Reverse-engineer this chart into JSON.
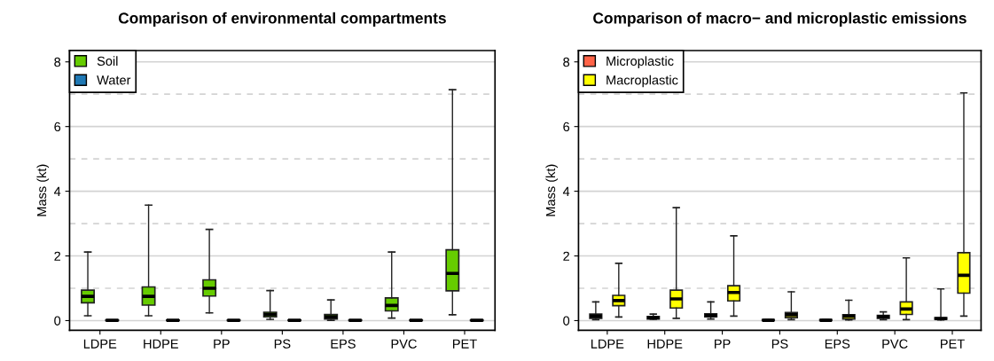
{
  "chart_data": [
    {
      "type": "box",
      "title": "Comparison of environmental compartments",
      "ylabel": "Mass (kt)",
      "categories": [
        "LDPE",
        "HDPE",
        "PP",
        "PS",
        "EPS",
        "PVC",
        "PET"
      ],
      "ylim": [
        -0.3,
        8.35
      ],
      "yticks": [
        0,
        2,
        4,
        6,
        8
      ],
      "grid": "y",
      "legend": "top left",
      "ref_lines": [
        {
          "axis": "y",
          "value": 1,
          "line_style": "dashed",
          "color": "#d3d3d3"
        },
        {
          "axis": "y",
          "value": 3,
          "line_style": "dashed",
          "color": "#d3d3d3"
        },
        {
          "axis": "y",
          "value": 5,
          "line_style": "dashed",
          "color": "#d3d3d3"
        },
        {
          "axis": "y",
          "value": 7,
          "line_style": "dashed",
          "color": "#d3d3d3"
        }
      ],
      "series": [
        {
          "name": "Soil",
          "color": "#66cc00",
          "boxes": [
            {
              "low": 0.15,
              "q1": 0.55,
              "median": 0.75,
              "q3": 0.94,
              "high": 2.12
            },
            {
              "low": 0.15,
              "q1": 0.48,
              "median": 0.75,
              "q3": 1.04,
              "high": 3.57
            },
            {
              "low": 0.24,
              "q1": 0.76,
              "median": 1.0,
              "q3": 1.26,
              "high": 2.82
            },
            {
              "low": 0.04,
              "q1": 0.12,
              "median": 0.19,
              "q3": 0.26,
              "high": 0.93
            },
            {
              "low": 0.01,
              "q1": 0.05,
              "median": 0.12,
              "q3": 0.19,
              "high": 0.64
            },
            {
              "low": 0.08,
              "q1": 0.3,
              "median": 0.47,
              "q3": 0.7,
              "high": 2.12
            },
            {
              "low": 0.18,
              "q1": 0.92,
              "median": 1.46,
              "q3": 2.19,
              "high": 7.14
            }
          ]
        },
        {
          "name": "Water",
          "color": "#1f78b4",
          "boxes": [
            {
              "low": 0,
              "q1": 0,
              "median": 0.01,
              "q3": 0.02,
              "high": 0.02
            },
            {
              "low": 0,
              "q1": 0,
              "median": 0.01,
              "q3": 0.02,
              "high": 0.02
            },
            {
              "low": 0,
              "q1": 0,
              "median": 0.01,
              "q3": 0.02,
              "high": 0.02
            },
            {
              "low": 0,
              "q1": 0,
              "median": 0.01,
              "q3": 0.02,
              "high": 0.02
            },
            {
              "low": 0,
              "q1": 0,
              "median": 0.01,
              "q3": 0.02,
              "high": 0.02
            },
            {
              "low": 0,
              "q1": 0,
              "median": 0.01,
              "q3": 0.02,
              "high": 0.02
            },
            {
              "low": 0,
              "q1": 0,
              "median": 0.01,
              "q3": 0.02,
              "high": 0.02
            }
          ]
        }
      ]
    },
    {
      "type": "box",
      "title": "Comparison of macro− and microplastic emissions",
      "ylabel": "Mass (kt)",
      "categories": [
        "LDPE",
        "HDPE",
        "PP",
        "PS",
        "EPS",
        "PVC",
        "PET"
      ],
      "ylim": [
        -0.3,
        8.35
      ],
      "yticks": [
        0,
        2,
        4,
        6,
        8
      ],
      "grid": "y",
      "legend": "top left",
      "ref_lines": [
        {
          "axis": "y",
          "value": 1,
          "line_style": "dashed",
          "color": "#d3d3d3"
        },
        {
          "axis": "y",
          "value": 3,
          "line_style": "dashed",
          "color": "#d3d3d3"
        },
        {
          "axis": "y",
          "value": 5,
          "line_style": "dashed",
          "color": "#d3d3d3"
        },
        {
          "axis": "y",
          "value": 7,
          "line_style": "dashed",
          "color": "#d3d3d3"
        }
      ],
      "series": [
        {
          "name": "Microplastic",
          "color": "#ff6347",
          "boxes": [
            {
              "low": 0.03,
              "q1": 0.07,
              "median": 0.14,
              "q3": 0.2,
              "high": 0.58
            },
            {
              "low": 0.04,
              "q1": 0.05,
              "median": 0.09,
              "q3": 0.13,
              "high": 0.2
            },
            {
              "low": 0.05,
              "q1": 0.12,
              "median": 0.16,
              "q3": 0.21,
              "high": 0.58
            },
            {
              "low": 0,
              "q1": 0,
              "median": 0.01,
              "q3": 0.03,
              "high": 0.03
            },
            {
              "low": 0,
              "q1": 0,
              "median": 0.01,
              "q3": 0.03,
              "high": 0.03
            },
            {
              "low": 0.03,
              "q1": 0.07,
              "median": 0.12,
              "q3": 0.16,
              "high": 0.27
            },
            {
              "low": 0.02,
              "q1": 0.04,
              "median": 0.06,
              "q3": 0.09,
              "high": 0.98
            }
          ]
        },
        {
          "name": "Macroplastic",
          "color": "#ffff00",
          "boxes": [
            {
              "low": 0.11,
              "q1": 0.46,
              "median": 0.62,
              "q3": 0.78,
              "high": 1.77
            },
            {
              "low": 0.07,
              "q1": 0.39,
              "median": 0.67,
              "q3": 0.94,
              "high": 3.49
            },
            {
              "low": 0.14,
              "q1": 0.61,
              "median": 0.87,
              "q3": 1.08,
              "high": 2.62
            },
            {
              "low": 0.03,
              "q1": 0.09,
              "median": 0.18,
              "q3": 0.25,
              "high": 0.89
            },
            {
              "low": 0.02,
              "q1": 0.05,
              "median": 0.14,
              "q3": 0.18,
              "high": 0.63
            },
            {
              "low": 0.03,
              "q1": 0.19,
              "median": 0.36,
              "q3": 0.58,
              "high": 1.94
            },
            {
              "low": 0.14,
              "q1": 0.85,
              "median": 1.4,
              "q3": 2.1,
              "high": 7.04
            }
          ]
        }
      ]
    }
  ]
}
